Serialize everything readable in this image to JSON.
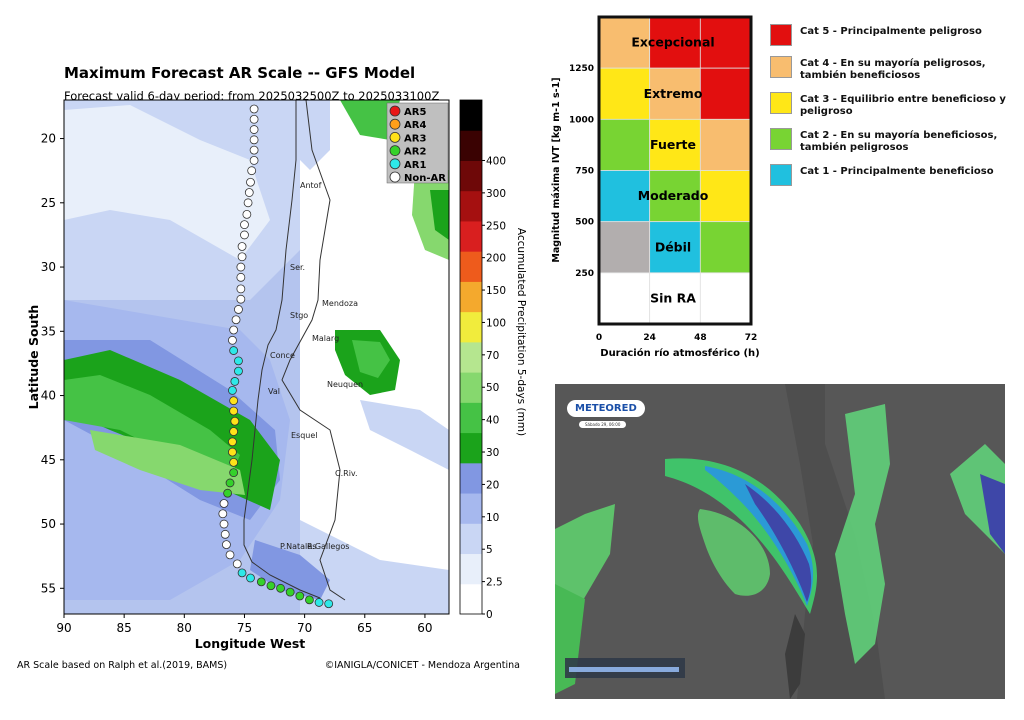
{
  "colors": {
    "ar5": "#e81717",
    "ar4": "#ff9f1a",
    "ar3": "#ffe21a",
    "ar2": "#35d12b",
    "ar1": "#2ee8e8",
    "nonar": "#ffffff"
  },
  "chart_data": [
    {
      "type": "heatmap",
      "title": "Maximum Forecast AR Scale -- GFS Model",
      "subtitle": "Forecast valid 6-day period: from 2025032500Z to 2025033100Z",
      "xlabel": "Longitude West",
      "ylabel": "Latitude South",
      "xlim": [
        90,
        58
      ],
      "ylim": [
        57,
        17
      ],
      "xticks": [
        "90",
        "85",
        "80",
        "75",
        "70",
        "65",
        "60"
      ],
      "yticks": [
        "20",
        "25",
        "30",
        "35",
        "40",
        "45",
        "50",
        "55"
      ],
      "colorbar": {
        "label": "Accumulated Precipitation 5-days (mm)",
        "ticks": [
          "0",
          "2.5",
          "5",
          "10",
          "20",
          "30",
          "40",
          "50",
          "70",
          "100",
          "150",
          "200",
          "250",
          "300",
          "400"
        ],
        "colors": [
          "#ffffff",
          "#e8effa",
          "#c9d6f4",
          "#a6b8ee",
          "#8197e2",
          "#1ba31b",
          "#45c245",
          "#86d86e",
          "#b5e68f",
          "#f1ec3c",
          "#f4a92d",
          "#ee5b1c",
          "#d91f1f",
          "#a51010",
          "#6e0808",
          "#3a0202",
          "#000000"
        ]
      },
      "legend": [
        "AR5",
        "AR4",
        "AR3",
        "AR2",
        "AR1",
        "Non-AR"
      ],
      "cities": [
        "Antof",
        "Ser.",
        "Stgo",
        "Mendoza",
        "Malarg",
        "Conce",
        "Neuquen",
        "Val",
        "Esquel",
        "C.Riv.",
        "P.Natales",
        "R.Gallegos"
      ],
      "ar_points": [
        {
          "lon": 74.2,
          "lat": 17.7,
          "cat": "Non-AR"
        },
        {
          "lon": 74.2,
          "lat": 18.5,
          "cat": "Non-AR"
        },
        {
          "lon": 74.2,
          "lat": 19.3,
          "cat": "Non-AR"
        },
        {
          "lon": 74.2,
          "lat": 20.1,
          "cat": "Non-AR"
        },
        {
          "lon": 74.2,
          "lat": 20.9,
          "cat": "Non-AR"
        },
        {
          "lon": 74.2,
          "lat": 21.7,
          "cat": "Non-AR"
        },
        {
          "lon": 74.4,
          "lat": 22.5,
          "cat": "Non-AR"
        },
        {
          "lon": 74.5,
          "lat": 23.4,
          "cat": "Non-AR"
        },
        {
          "lon": 74.6,
          "lat": 24.2,
          "cat": "Non-AR"
        },
        {
          "lon": 74.7,
          "lat": 25.0,
          "cat": "Non-AR"
        },
        {
          "lon": 74.8,
          "lat": 25.9,
          "cat": "Non-AR"
        },
        {
          "lon": 75.0,
          "lat": 26.7,
          "cat": "Non-AR"
        },
        {
          "lon": 75.0,
          "lat": 27.5,
          "cat": "Non-AR"
        },
        {
          "lon": 75.2,
          "lat": 28.4,
          "cat": "Non-AR"
        },
        {
          "lon": 75.2,
          "lat": 29.2,
          "cat": "Non-AR"
        },
        {
          "lon": 75.3,
          "lat": 30.0,
          "cat": "Non-AR"
        },
        {
          "lon": 75.3,
          "lat": 30.8,
          "cat": "Non-AR"
        },
        {
          "lon": 75.3,
          "lat": 31.7,
          "cat": "Non-AR"
        },
        {
          "lon": 75.3,
          "lat": 32.5,
          "cat": "Non-AR"
        },
        {
          "lon": 75.5,
          "lat": 33.3,
          "cat": "Non-AR"
        },
        {
          "lon": 75.7,
          "lat": 34.1,
          "cat": "Non-AR"
        },
        {
          "lon": 75.9,
          "lat": 34.9,
          "cat": "Non-AR"
        },
        {
          "lon": 76.0,
          "lat": 35.7,
          "cat": "Non-AR"
        },
        {
          "lon": 75.9,
          "lat": 36.5,
          "cat": "AR1"
        },
        {
          "lon": 75.5,
          "lat": 37.3,
          "cat": "AR1"
        },
        {
          "lon": 75.5,
          "lat": 38.1,
          "cat": "AR1"
        },
        {
          "lon": 75.8,
          "lat": 38.9,
          "cat": "AR1"
        },
        {
          "lon": 76.0,
          "lat": 39.6,
          "cat": "AR1"
        },
        {
          "lon": 75.9,
          "lat": 40.4,
          "cat": "AR3"
        },
        {
          "lon": 75.9,
          "lat": 41.2,
          "cat": "AR3"
        },
        {
          "lon": 75.8,
          "lat": 42.0,
          "cat": "AR3"
        },
        {
          "lon": 75.9,
          "lat": 42.8,
          "cat": "AR3"
        },
        {
          "lon": 76.0,
          "lat": 43.6,
          "cat": "AR3"
        },
        {
          "lon": 76.0,
          "lat": 44.4,
          "cat": "AR3"
        },
        {
          "lon": 75.9,
          "lat": 45.2,
          "cat": "AR3"
        },
        {
          "lon": 75.9,
          "lat": 46.0,
          "cat": "AR2"
        },
        {
          "lon": 76.2,
          "lat": 46.8,
          "cat": "AR2"
        },
        {
          "lon": 76.4,
          "lat": 47.6,
          "cat": "AR2"
        },
        {
          "lon": 76.7,
          "lat": 48.4,
          "cat": "Non-AR"
        },
        {
          "lon": 76.8,
          "lat": 49.2,
          "cat": "Non-AR"
        },
        {
          "lon": 76.7,
          "lat": 50.0,
          "cat": "Non-AR"
        },
        {
          "lon": 76.6,
          "lat": 50.8,
          "cat": "Non-AR"
        },
        {
          "lon": 76.5,
          "lat": 51.6,
          "cat": "Non-AR"
        },
        {
          "lon": 76.2,
          "lat": 52.4,
          "cat": "Non-AR"
        },
        {
          "lon": 75.6,
          "lat": 53.1,
          "cat": "Non-AR"
        },
        {
          "lon": 75.2,
          "lat": 53.8,
          "cat": "AR1"
        },
        {
          "lon": 74.5,
          "lat": 54.2,
          "cat": "AR1"
        },
        {
          "lon": 73.6,
          "lat": 54.5,
          "cat": "AR2"
        },
        {
          "lon": 72.8,
          "lat": 54.8,
          "cat": "AR2"
        },
        {
          "lon": 72.0,
          "lat": 55.0,
          "cat": "AR2"
        },
        {
          "lon": 71.2,
          "lat": 55.3,
          "cat": "AR2"
        },
        {
          "lon": 70.4,
          "lat": 55.6,
          "cat": "AR2"
        },
        {
          "lon": 69.6,
          "lat": 55.9,
          "cat": "AR2"
        },
        {
          "lon": 68.8,
          "lat": 56.1,
          "cat": "AR1"
        },
        {
          "lon": 68.0,
          "lat": 56.2,
          "cat": "AR1"
        }
      ],
      "credit_left": "AR Scale based on Ralph et al.(2019, BAMS)",
      "credit_right": "©IANIGLA/CONICET - Mendoza Argentina"
    },
    {
      "type": "table",
      "xlabel": "Duración río atmosférico (h)",
      "ylabel": "Magnitud máxima IVT [kg m-1 s-1]",
      "xticks": [
        "0",
        "24",
        "48",
        "72"
      ],
      "yticks": [
        "250",
        "500",
        "750",
        "1000",
        "1250"
      ],
      "row_labels": [
        "Excepcional",
        "Extremo",
        "Fuerte",
        "Moderado",
        "Débil",
        "Sin RA"
      ],
      "grid_colors": [
        [
          "#f8bd6f",
          "#e20f0f",
          "#e20f0f"
        ],
        [
          "#ffe717",
          "#f8bd6f",
          "#e20f0f"
        ],
        [
          "#78d433",
          "#ffe717",
          "#f8bd6f"
        ],
        [
          "#20c0df",
          "#78d433",
          "#ffe717"
        ],
        [
          "#b2aeae",
          "#20c0df",
          "#78d433"
        ],
        [
          "#ffffff",
          "#ffffff",
          "#ffffff"
        ]
      ],
      "legend": [
        {
          "label": "Cat 5 - Principalmente peligroso",
          "color": "#e20f0f"
        },
        {
          "label": "Cat 4 - En su mayoría peligrosos, también beneficiosos",
          "color": "#f8bd6f"
        },
        {
          "label": "Cat 3 - Equilibrio entre beneficioso y peligroso",
          "color": "#ffe717"
        },
        {
          "label": "Cat 2 - En su mayoría beneficiosos, también peligrosos",
          "color": "#78d433"
        },
        {
          "label": "Cat 1 - Principalmente beneficioso",
          "color": "#20c0df"
        }
      ]
    }
  ],
  "meteored": {
    "logo": "METEORED",
    "date": "Sábado 29, 06:00"
  }
}
